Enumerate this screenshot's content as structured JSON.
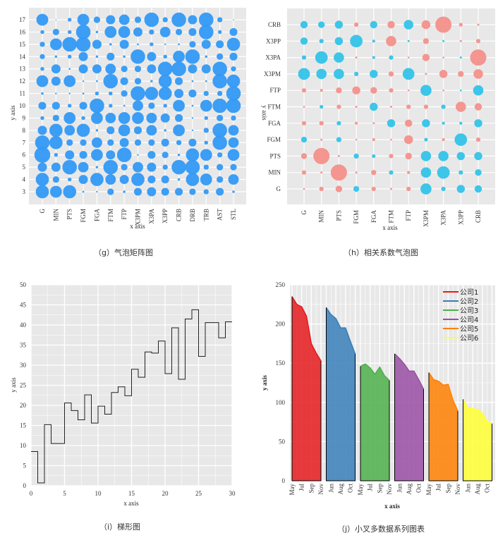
{
  "colors": {
    "panel": "#e8e8e8",
    "grid": "#ffffff",
    "bubble": "#3399f5",
    "positive": "#33c3e8",
    "negative": "#f4908a"
  },
  "chart_data": [
    {
      "type": "scatter",
      "subtype": "bubble-matrix",
      "caption": "（g）气泡矩阵图",
      "xlabel": "x axis",
      "ylabel": "y axis",
      "categories": [
        "G",
        "MIN",
        "PTS",
        "FGM",
        "FGA",
        "FTM",
        "FTP",
        "X3PM",
        "X3PA",
        "X3PP",
        "CRB",
        "DRB",
        "TRB",
        "AST",
        "STL"
      ],
      "y_ticks": [
        3,
        4,
        5,
        6,
        7,
        8,
        9,
        10,
        11,
        12,
        13,
        14,
        15,
        16,
        17
      ],
      "grid": true,
      "sizes_by_y": {
        "17": [
          4,
          0,
          1,
          4,
          2,
          3,
          3.5,
          2,
          5,
          1.5,
          5,
          3,
          5,
          1.5,
          0
        ],
        "16": [
          1,
          2,
          1,
          5,
          0.5,
          4,
          4,
          3,
          1.5,
          3.5,
          2,
          2.5,
          5,
          1,
          2.5
        ],
        "15": [
          1.5,
          4,
          5,
          5,
          3,
          0.5,
          3,
          0.3,
          1,
          0.2,
          0.3,
          2,
          3,
          2.5,
          4.5
        ],
        "14": [
          1.5,
          0.5,
          1,
          3,
          0.5,
          2.5,
          0.5,
          5,
          3,
          1,
          4,
          5,
          0.5,
          2,
          2.5
        ],
        "13": [
          1,
          3,
          0.3,
          3,
          3,
          3.5,
          2,
          2,
          3,
          5,
          5,
          3,
          3,
          5,
          1.5
        ],
        "12": [
          4,
          3,
          4,
          0.2,
          0.3,
          5,
          2.5,
          2,
          0.5,
          4.5,
          2.5,
          0.3,
          0.3,
          5,
          4.5
        ],
        "11": [
          0.5,
          0.2,
          0.2,
          0.3,
          1,
          1,
          2,
          5,
          4.5,
          4.5,
          3,
          2.5,
          1.5,
          1.5,
          5
        ],
        "10": [
          2.5,
          2.5,
          1,
          2.5,
          5,
          1,
          0.3,
          3.5,
          2,
          1,
          4,
          0.3,
          4,
          5,
          5
        ],
        "9": [
          1,
          2,
          4,
          1,
          4,
          3.5,
          4,
          4,
          3.5,
          3,
          2.5,
          0.2,
          1,
          2,
          1.5
        ],
        "8": [
          3,
          4.5,
          3.5,
          4.5,
          0.5,
          2.5,
          4,
          2.5,
          3.5,
          0.5,
          4,
          0.2,
          1.5,
          5,
          3.5
        ],
        "7": [
          5,
          4.5,
          2,
          2,
          3.5,
          2,
          3,
          2,
          2,
          2.5,
          1.5,
          2.5,
          1,
          5,
          3.5
        ],
        "6": [
          5.5,
          1,
          3,
          2.5,
          4,
          3,
          5,
          0.2,
          2.5,
          2,
          0.5,
          4.5,
          4,
          1.5,
          4
        ],
        "5": [
          3,
          3,
          5,
          3.5,
          0.5,
          5,
          2,
          3.5,
          3,
          1.5,
          5,
          5,
          1.5,
          2,
          2
        ],
        "4": [
          4.5,
          2,
          1,
          3,
          4.5,
          3.5,
          3,
          4.5,
          2.5,
          2.5,
          0.5,
          4.5,
          4,
          2,
          3.5
        ],
        "3": [
          4.5,
          4,
          4.5,
          0.3,
          0.2,
          2,
          0.5,
          2.5,
          3,
          2.5,
          2.5,
          2,
          1.5,
          2.5,
          0.5
        ]
      }
    },
    {
      "type": "scatter",
      "subtype": "correlation-bubble",
      "caption": "（h）相关系数气泡图",
      "xlabel": "x axis",
      "ylabel": "y axis",
      "x_categories": [
        "G",
        "MIN",
        "PTS",
        "FGM",
        "FGA",
        "FTM",
        "FTP",
        "X3PM",
        "X3PA",
        "X3PP",
        "CRB"
      ],
      "y_categories": [
        "G",
        "MIN",
        "PTS",
        "FGM",
        "FGA",
        "FTM",
        "FTP",
        "X3PM",
        "X3PA",
        "X3PP",
        "CRB"
      ],
      "grid": true,
      "values_by_y": {
        "CRB": [
          0.4,
          0.35,
          0.45,
          -0.2,
          0.4,
          -0.4,
          0.55,
          -0.5,
          -1.0,
          -0.15,
          -0.05
        ],
        "X3PP": [
          0.4,
          0.2,
          0.45,
          0.75,
          0.1,
          -0.6,
          0.05,
          -0.3,
          0.05,
          -0.05,
          -0.2
        ],
        "X3PA": [
          0.2,
          0.75,
          0.6,
          -0.05,
          0.1,
          0.2,
          -0.03,
          -0.4,
          -0.03,
          0.05,
          -1.0
        ],
        "X3PM": [
          0.7,
          0.6,
          0.6,
          0.2,
          0.45,
          -0.25,
          0.7,
          -0.05,
          -0.45,
          -0.3,
          -0.55
        ],
        "FTP": [
          -0.2,
          -0.1,
          -0.3,
          -0.45,
          -0.35,
          -0.2,
          -0.03,
          0.65,
          -0.03,
          0.03,
          0.6
        ],
        "FTM": [
          -0.03,
          0.15,
          -0.2,
          -0.05,
          0.45,
          -0.05,
          -0.2,
          -0.2,
          0.2,
          -0.6,
          -0.4
        ],
        "FGA": [
          -0.2,
          -0.2,
          0.2,
          -0.1,
          -0.05,
          0.45,
          -0.4,
          0.45,
          0.1,
          0.1,
          0.45
        ],
        "FGM": [
          0.3,
          -0.05,
          0.25,
          -0.03,
          -0.1,
          -0.03,
          -0.5,
          0.15,
          -0.1,
          0.75,
          -0.2
        ],
        "PTS": [
          -0.3,
          -1.0,
          -0.05,
          0.25,
          0.15,
          -0.2,
          -0.35,
          0.6,
          0.6,
          0.45,
          0.45
        ],
        "MIN": [
          -0.2,
          -0.05,
          -1.0,
          -0.05,
          -0.25,
          0.2,
          -0.1,
          0.6,
          0.75,
          0.2,
          0.35
        ],
        "G": [
          -0.03,
          -0.2,
          -0.35,
          0.3,
          -0.2,
          -0.05,
          -0.2,
          0.65,
          0.2,
          0.45,
          0.4
        ]
      }
    },
    {
      "type": "line",
      "subtype": "step",
      "caption": "（i）梯形图",
      "xlabel": "x axis",
      "ylabel": "y axis",
      "xlim": [
        0,
        30
      ],
      "ylim": [
        0,
        50
      ],
      "x_ticks": [
        0,
        5,
        10,
        15,
        20,
        25,
        30
      ],
      "y_ticks": [
        0,
        5,
        10,
        15,
        20,
        25,
        30,
        35,
        40,
        45,
        50
      ],
      "grid": true,
      "x": [
        0,
        1,
        2,
        3,
        4,
        5,
        6,
        7,
        8,
        9,
        10,
        11,
        12,
        13,
        14,
        15,
        16,
        17,
        18,
        19,
        20,
        21,
        22,
        23,
        24,
        25,
        26,
        27,
        28,
        29,
        30
      ],
      "y": [
        8.5,
        0.7,
        15.2,
        10.5,
        10.5,
        20.6,
        18.7,
        16.4,
        22.6,
        15.6,
        19.8,
        17.8,
        23.2,
        24.6,
        22.4,
        29,
        27,
        33.3,
        33,
        36,
        27.9,
        39.3,
        26.5,
        41.5,
        43.8,
        32.2,
        40.6,
        40.6,
        36.8,
        40.8,
        40.8
      ]
    },
    {
      "type": "area",
      "subtype": "small-multiples",
      "caption": "（j）小叉多数据系列图表",
      "xlabel": "x axis",
      "ylabel": "y axis",
      "ylim": [
        0,
        250
      ],
      "y_ticks": [
        0,
        50,
        100,
        150,
        200,
        250
      ],
      "grid": true,
      "legend": "top-right",
      "months": [
        "May",
        "Jun",
        "Jul",
        "Aug",
        "Sep",
        "Oct",
        "Nov"
      ],
      "series": [
        {
          "name": "公司1",
          "color": "#e41a1c",
          "tick_labels": [
            "May",
            "Jul",
            "Sep",
            "Nov"
          ],
          "values": [
            235,
            225,
            222,
            210,
            175,
            163,
            153
          ]
        },
        {
          "name": "公司2",
          "color": "#377eb8",
          "tick_labels": [
            "Jun",
            "Aug",
            "Oct"
          ],
          "values": [
            221,
            212,
            207,
            195,
            195,
            178,
            162
          ]
        },
        {
          "name": "公司3",
          "color": "#4daf4a",
          "tick_labels": [
            "May",
            "Jul",
            "Sep",
            "Nov"
          ],
          "values": [
            146,
            149,
            144,
            136,
            145,
            134,
            128
          ]
        },
        {
          "name": "公司4",
          "color": "#984ea3",
          "tick_labels": [
            "Jun",
            "Aug",
            "Oct"
          ],
          "values": [
            162,
            156,
            149,
            140,
            140,
            129,
            117
          ]
        },
        {
          "name": "公司5",
          "color": "#ff7f00",
          "tick_labels": [
            "May",
            "Jul",
            "Sep",
            "Nov"
          ],
          "values": [
            138,
            129,
            127,
            122,
            123,
            103,
            89
          ]
        },
        {
          "name": "公司6",
          "color": "#ffff33",
          "tick_labels": [
            "Jun",
            "Aug",
            "Oct"
          ],
          "values": [
            104,
            93,
            92,
            91,
            86,
            76,
            73
          ]
        }
      ]
    }
  ]
}
